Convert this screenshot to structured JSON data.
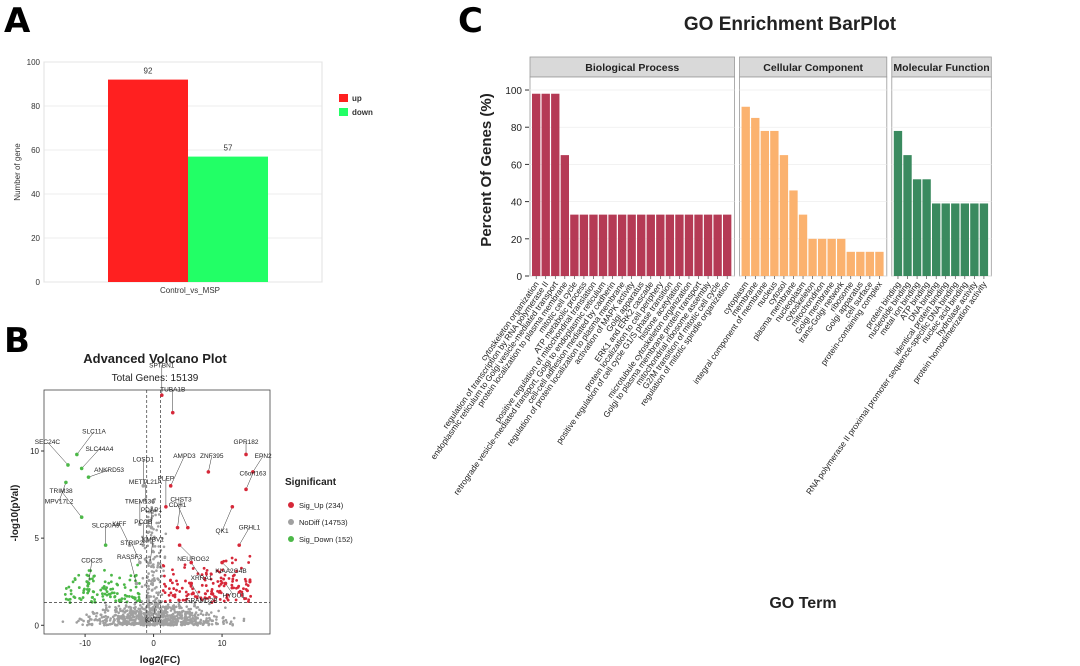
{
  "panels": {
    "a": "A",
    "b": "B",
    "c": "C"
  },
  "chart_data": [
    {
      "type": "bar",
      "panel": "A",
      "categories": [
        "Control_vs_MSP"
      ],
      "series": [
        {
          "name": "up",
          "values": [
            92
          ],
          "color": "#ff2020"
        },
        {
          "name": "down",
          "values": [
            57
          ],
          "color": "#22ff66"
        }
      ],
      "yticks": [
        0,
        20,
        40,
        60,
        80,
        100
      ],
      "ylabel": "Number of gene",
      "xlabel": "Control_vs_MSP",
      "ylim": [
        0,
        100
      ],
      "legend": [
        "up",
        "down"
      ]
    },
    {
      "type": "scatter",
      "panel": "B",
      "title": "Advanced Volcano Plot",
      "subtitle": "Total Genes: 15139",
      "xlabel": "log2(FC)",
      "ylabel": "-log10(pVal)",
      "xlim": [
        -16,
        17
      ],
      "ylim": [
        -0.5,
        13.5
      ],
      "xticks": [
        -10,
        0,
        10
      ],
      "yticks": [
        0,
        5,
        10
      ],
      "legend_title": "Significant",
      "legend": [
        {
          "label": "Sig_Up (234)",
          "color": "#d62839"
        },
        {
          "label": "NoDiff (14753)",
          "color": "#a0a0a0"
        },
        {
          "label": "Sig_Down (152)",
          "color": "#4cb848"
        }
      ],
      "labeled_genes": [
        {
          "gene": "SPTBN1",
          "x": 1.2,
          "y": 13.2,
          "group": "up"
        },
        {
          "gene": "TUBA1B",
          "x": 2.8,
          "y": 12.2,
          "group": "up"
        },
        {
          "gene": "SLC11A",
          "x": -11.2,
          "y": 9.8,
          "group": "down"
        },
        {
          "gene": "SEC24C",
          "x": -12.5,
          "y": 9.2,
          "group": "down"
        },
        {
          "gene": "SLC44A4",
          "x": -10.5,
          "y": 9.0,
          "group": "down"
        },
        {
          "gene": "MPV17L2",
          "x": -12.8,
          "y": 8.2,
          "group": "down"
        },
        {
          "gene": "ANKRD53",
          "x": -9.5,
          "y": 8.5,
          "group": "down"
        },
        {
          "gene": "TRIM38",
          "x": -10.5,
          "y": 6.2,
          "group": "down"
        },
        {
          "gene": "LOSD1",
          "x": -1.5,
          "y": 8.0,
          "group": "nodiff"
        },
        {
          "gene": "AMPD3",
          "x": 2.5,
          "y": 8.0,
          "group": "up"
        },
        {
          "gene": "METTL21A",
          "x": -1.2,
          "y": 7.2,
          "group": "nodiff"
        },
        {
          "gene": "PLEP",
          "x": 1.8,
          "y": 6.8,
          "group": "up"
        },
        {
          "gene": "TMEM136",
          "x": -2.0,
          "y": 5.8,
          "group": "nodiff"
        },
        {
          "gene": "PDAP1",
          "x": -0.3,
          "y": 5.6,
          "group": "nodiff"
        },
        {
          "gene": "CHST3",
          "x": 3.5,
          "y": 5.6,
          "group": "up"
        },
        {
          "gene": "CDH1",
          "x": 5.0,
          "y": 5.6,
          "group": "up"
        },
        {
          "gene": "SLC30A9",
          "x": -7.0,
          "y": 4.6,
          "group": "down"
        },
        {
          "gene": "KIFF",
          "x": -3.5,
          "y": 4.6,
          "group": "nodiff"
        },
        {
          "gene": "PCCB",
          "x": -1.5,
          "y": 4.6,
          "group": "nodiff"
        },
        {
          "gene": "NEUROG2",
          "x": 3.8,
          "y": 4.6,
          "group": "up"
        },
        {
          "gene": "STRIP2",
          "x": -2.0,
          "y": 3.6,
          "group": "nodiff"
        },
        {
          "gene": "KMBV1",
          "x": -0.5,
          "y": 3.6,
          "group": "nodiff"
        },
        {
          "gene": "XRRA1",
          "x": 5.5,
          "y": 3.6,
          "group": "up"
        },
        {
          "gene": "CDC25",
          "x": -9.5,
          "y": 2.4,
          "group": "down"
        },
        {
          "gene": "RASSF3",
          "x": -2.5,
          "y": 2.4,
          "group": "nodiff"
        },
        {
          "gene": "GRAMD2B",
          "x": 5.5,
          "y": 2.4,
          "group": "up"
        },
        {
          "gene": "KAT7",
          "x": 0.3,
          "y": 1.2,
          "group": "nodiff"
        },
        {
          "gene": "GPR182",
          "x": 13.5,
          "y": 9.8,
          "group": "up"
        },
        {
          "gene": "EPN2",
          "x": 14.5,
          "y": 8.8,
          "group": "up"
        },
        {
          "gene": "C6orf163",
          "x": 13.5,
          "y": 7.8,
          "group": "up"
        },
        {
          "gene": "QK1",
          "x": 11.5,
          "y": 6.8,
          "group": "up"
        },
        {
          "gene": "ZNF395",
          "x": 8.0,
          "y": 8.8,
          "group": "up"
        },
        {
          "gene": "GRHL1",
          "x": 12.5,
          "y": 4.6,
          "group": "up"
        },
        {
          "gene": "KIAA2G4B",
          "x": 10.0,
          "y": 3.6,
          "group": "up"
        },
        {
          "gene": "HYOU1",
          "x": 10.5,
          "y": 2.4,
          "group": "up"
        }
      ]
    },
    {
      "type": "bar",
      "panel": "C",
      "title": "GO Enrichment BarPlot",
      "xlabel": "GO Term",
      "ylabel": "Percent Of Genes (%)",
      "ylim": [
        0,
        107
      ],
      "yticks": [
        0,
        20,
        40,
        60,
        80,
        100
      ],
      "facets": [
        {
          "name": "Biological Process",
          "color": "#b53a55",
          "categories": [
            "cytoskeleton organization",
            "regulation of transcription by RNA polymerase II",
            "endoplasmic reticulum to Golgi vesicle-mediated transport",
            "protein localization to plasma membrane",
            "mitotic cell cycle",
            "ATP metabolic process",
            "positive regulation of mitochondrial translation",
            "retrograde vesicle-mediated transport, Golgi to endoplasmic reticulum",
            "cell-cell adhesion mediated by cadherin",
            "regulation of protein localization to plasma membrane",
            "activation of MAPK activity",
            "Golgi apparatus",
            "ERK1 and ERK2 cascade",
            "protein localization to cell periphery",
            "positive regulation of cell cycle G1/S phase transition",
            "histone acetylation",
            "microtubule cytoskeleton organization",
            "Golgi to plasma membrane protein transport",
            "mitochondrial ribosome assembly",
            "G2/M transition of mitotic cell cycle",
            "regulation of mitotic spindle organization"
          ],
          "values": [
            98,
            98,
            98,
            65,
            33,
            33,
            33,
            33,
            33,
            33,
            33,
            33,
            33,
            33,
            33,
            33,
            33,
            33,
            33,
            33,
            33
          ]
        },
        {
          "name": "Cellular Component",
          "color": "#fbb26f",
          "categories": [
            "cytoplasm",
            "membrane",
            "integral component of membrane",
            "nucleus",
            "cytosol",
            "plasma membrane",
            "nucleoplasm",
            "cytoskeleton",
            "mitochondrion",
            "Golgi membrane",
            "trans-Golgi network",
            "ribosome",
            "Golgi apparatus",
            "cell surface",
            "protein-containing complex"
          ],
          "values": [
            91,
            85,
            78,
            78,
            65,
            46,
            33,
            20,
            20,
            20,
            20,
            13,
            13,
            13,
            13
          ]
        },
        {
          "name": "Molecular Function",
          "color": "#3a8a5f",
          "categories": [
            "protein binding",
            "nucleotide binding",
            "metal ion binding",
            "ATP binding",
            "DNA binding",
            "identical protein binding",
            "RNA polymerase II proximal promoter sequence-specific DNA binding",
            "nucleic acid binding",
            "hydrolase activity",
            "protein homodimerization activity"
          ],
          "values": [
            78,
            65,
            52,
            52,
            39,
            39,
            39,
            39,
            39,
            39
          ]
        }
      ]
    }
  ]
}
